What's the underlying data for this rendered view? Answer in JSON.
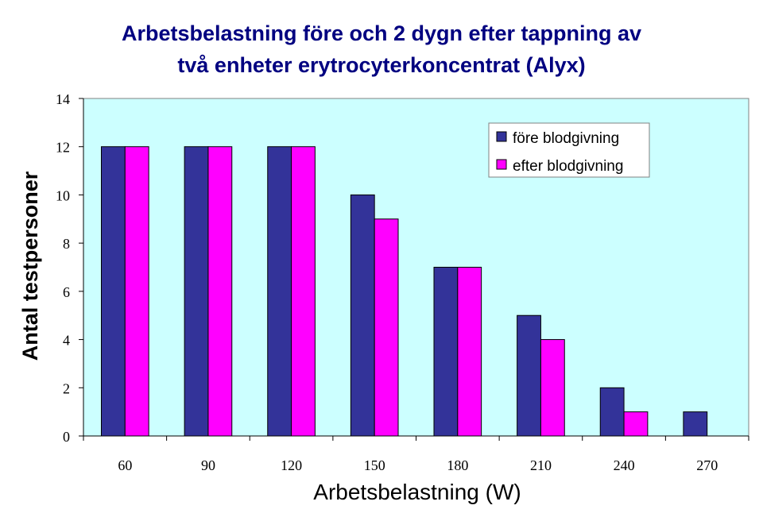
{
  "chart_data": {
    "type": "bar",
    "title_lines": [
      "Arbetsbelastning före och 2 dygn efter tappning av",
      "två enheter erytrocyterkoncentrat (Alyx)"
    ],
    "xlabel": "Arbetsbelastning (W)",
    "ylabel": "Antal testpersoner",
    "categories": [
      "60",
      "90",
      "120",
      "150",
      "180",
      "210",
      "240",
      "270"
    ],
    "series": [
      {
        "name": "före blodgivning",
        "values": [
          12,
          12,
          12,
          10,
          7,
          5,
          2,
          1
        ],
        "color": "#333399"
      },
      {
        "name": "efter blodgivning",
        "values": [
          12,
          12,
          12,
          9,
          7,
          4,
          1,
          0
        ],
        "color": "#ff00ff"
      }
    ],
    "yticks": [
      "0",
      "2",
      "4",
      "6",
      "8",
      "10",
      "12",
      "14"
    ],
    "ylim": [
      0,
      14
    ],
    "plot_background": "#ccffff",
    "grid": false,
    "legend_position": "top-right"
  }
}
